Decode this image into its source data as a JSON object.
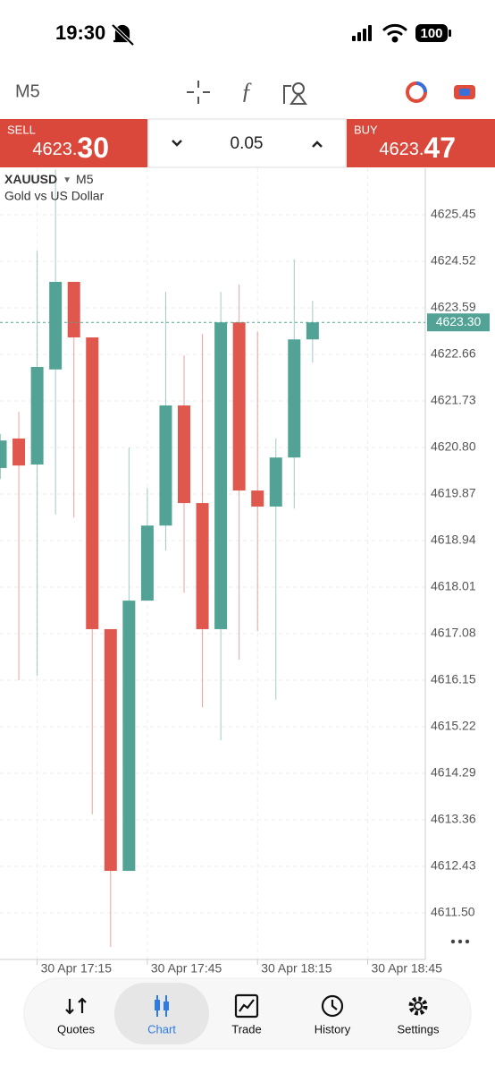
{
  "status_bar": {
    "time": "19:30",
    "battery": "100"
  },
  "toolbar": {
    "timeframe": "M5"
  },
  "trade_panel": {
    "sell": {
      "label": "SELL",
      "price_main": "4623.",
      "price_big": "30"
    },
    "volume": "0.05",
    "buy": {
      "label": "BUY",
      "price_main": "4623.",
      "price_big": "47"
    }
  },
  "chart_data": {
    "type": "candlestick",
    "symbol": "XAUUSD",
    "timeframe": "M5",
    "description": "Gold vs US Dollar",
    "categories": [
      null,
      null,
      "30 Apr 17:15",
      null,
      null,
      null,
      null,
      null,
      "30 Apr 17:45",
      null,
      null,
      null,
      null,
      null,
      "30 Apr 18:15",
      null,
      null,
      null,
      null,
      null,
      "30 Apr 18:45"
    ],
    "open": [
      4620.39,
      4620.98,
      4620.46,
      4622.36,
      4624.11,
      4623.0,
      4617.17,
      4612.34,
      4617.74,
      4619.24,
      4621.64,
      4619.69,
      4617.17,
      4623.3,
      4619.94,
      4619.62,
      4620.6,
      4622.96,
      null,
      null,
      null
    ],
    "high": [
      4621.07,
      4621.51,
      4624.73,
      4626.35,
      4624.11,
      4623.0,
      4617.17,
      4620.8,
      4619.99,
      4623.91,
      4622.64,
      4623.07,
      4623.91,
      4624.06,
      4623.12,
      4620.98,
      4624.56,
      4623.73,
      null,
      null,
      null
    ],
    "low": [
      4620.17,
      4616.15,
      4616.24,
      4619.46,
      4619.4,
      4613.47,
      4610.82,
      4612.34,
      4617.74,
      4618.74,
      4617.9,
      4615.61,
      4614.95,
      4616.56,
      4617.13,
      4615.76,
      4619.58,
      4622.5,
      null,
      null,
      null
    ],
    "close": [
      4620.94,
      4620.44,
      4622.41,
      4624.11,
      4623.0,
      4617.17,
      4612.34,
      4617.74,
      4619.24,
      4621.64,
      4619.69,
      4617.17,
      4623.3,
      4619.94,
      4619.62,
      4620.6,
      4622.96,
      4623.3,
      null,
      null,
      null
    ],
    "up_color": "#52a396",
    "down_color": "#e0574d",
    "ylim": [
      4610.57,
      4626.38
    ],
    "yticks": [
      4625.45,
      4624.52,
      4623.59,
      4622.66,
      4621.73,
      {
        "value": 4620.8,
        "label": "4620.80"
      },
      4619.87,
      4618.94,
      4618.01,
      4617.08,
      4616.15,
      4615.22,
      4614.29,
      4613.36,
      4612.43,
      {
        "value": 4611.5,
        "label": "4611.50"
      }
    ],
    "current_price": {
      "value": 4623.3,
      "label": "4623.30"
    },
    "grid": true
  },
  "nav": {
    "items": [
      "Quotes",
      "Chart",
      "Trade",
      "History",
      "Settings"
    ],
    "active": 1
  }
}
